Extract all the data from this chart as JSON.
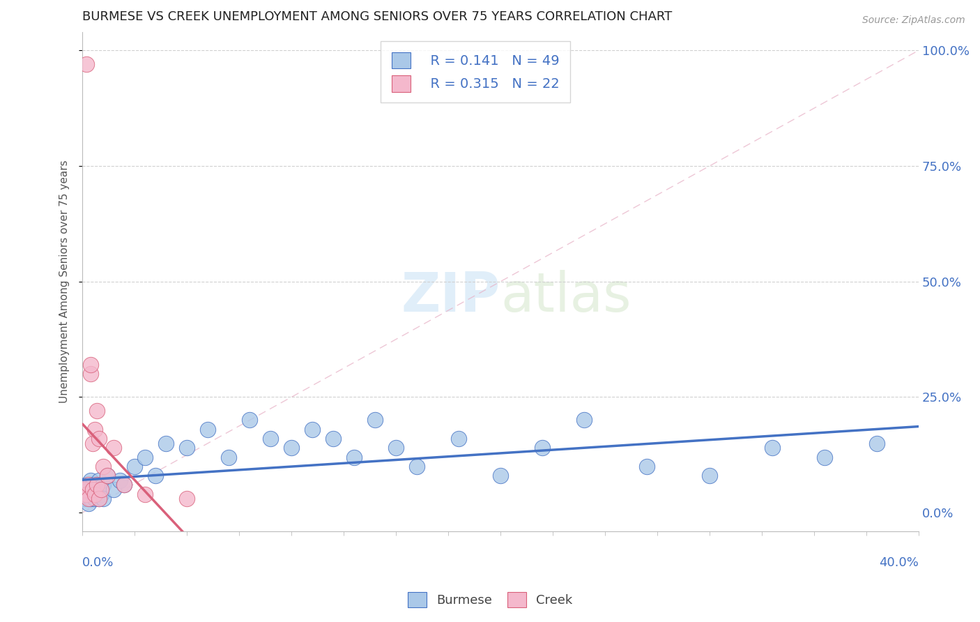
{
  "title": "BURMESE VS CREEK UNEMPLOYMENT AMONG SENIORS OVER 75 YEARS CORRELATION CHART",
  "source": "Source: ZipAtlas.com",
  "ylabel": "Unemployment Among Seniors over 75 years",
  "xlim": [
    0.0,
    0.4
  ],
  "ylim": [
    -0.04,
    1.04
  ],
  "burmese_R": 0.141,
  "burmese_N": 49,
  "creek_R": 0.315,
  "creek_N": 22,
  "burmese_color": "#aac8e8",
  "creek_color": "#f4b8cc",
  "burmese_line_color": "#4472c4",
  "creek_line_color": "#d9607a",
  "title_color": "#222222",
  "text_color": "#4472c4",
  "grid_color": "#d0d0d0",
  "background_color": "#ffffff",
  "ytick_vals": [
    0.0,
    0.25,
    0.5,
    0.75,
    1.0
  ],
  "ytick_labels": [
    "0.0%",
    "25.0%",
    "50.0%",
    "75.0%",
    "100.0%"
  ],
  "burmese_x": [
    0.001,
    0.001,
    0.002,
    0.002,
    0.003,
    0.003,
    0.004,
    0.004,
    0.005,
    0.005,
    0.006,
    0.006,
    0.007,
    0.007,
    0.008,
    0.008,
    0.009,
    0.009,
    0.01,
    0.01,
    0.012,
    0.015,
    0.018,
    0.02,
    0.025,
    0.03,
    0.035,
    0.04,
    0.05,
    0.06,
    0.07,
    0.08,
    0.09,
    0.1,
    0.11,
    0.12,
    0.13,
    0.14,
    0.15,
    0.16,
    0.18,
    0.2,
    0.22,
    0.24,
    0.27,
    0.3,
    0.33,
    0.355,
    0.38
  ],
  "burmese_y": [
    0.05,
    0.03,
    0.06,
    0.04,
    0.02,
    0.05,
    0.07,
    0.03,
    0.04,
    0.06,
    0.05,
    0.03,
    0.06,
    0.04,
    0.07,
    0.03,
    0.05,
    0.04,
    0.06,
    0.03,
    0.08,
    0.05,
    0.07,
    0.06,
    0.1,
    0.12,
    0.08,
    0.15,
    0.14,
    0.18,
    0.12,
    0.2,
    0.16,
    0.14,
    0.18,
    0.16,
    0.12,
    0.2,
    0.14,
    0.1,
    0.16,
    0.08,
    0.14,
    0.2,
    0.1,
    0.08,
    0.14,
    0.12,
    0.15
  ],
  "creek_x": [
    0.001,
    0.002,
    0.002,
    0.003,
    0.003,
    0.004,
    0.004,
    0.005,
    0.005,
    0.006,
    0.006,
    0.007,
    0.007,
    0.008,
    0.008,
    0.009,
    0.01,
    0.012,
    0.015,
    0.02,
    0.03,
    0.05
  ],
  "creek_y": [
    0.05,
    0.97,
    0.04,
    0.06,
    0.03,
    0.3,
    0.32,
    0.05,
    0.15,
    0.04,
    0.18,
    0.06,
    0.22,
    0.03,
    0.16,
    0.05,
    0.1,
    0.08,
    0.14,
    0.06,
    0.04,
    0.03
  ]
}
